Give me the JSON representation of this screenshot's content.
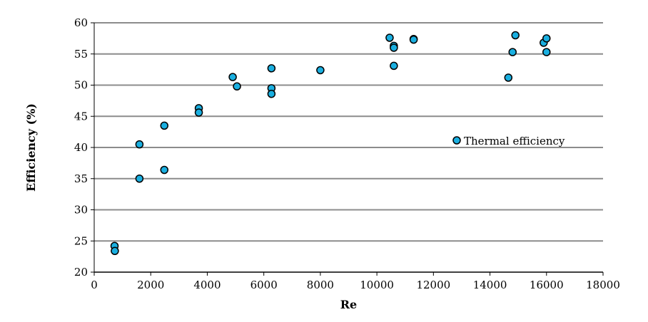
{
  "chart_data": {
    "type": "scatter",
    "xlabel": "Re",
    "ylabel": "Efficiency  (%)",
    "xlim": [
      0,
      18000
    ],
    "ylim": [
      20,
      60
    ],
    "xticks": [
      "0",
      "2000",
      "4000",
      "6000",
      "8000",
      "10000",
      "12000",
      "14000",
      "16000",
      "18000"
    ],
    "yticks": [
      "20",
      "25",
      "30",
      "35",
      "40",
      "45",
      "50",
      "55",
      "60"
    ],
    "grid": "horizontal",
    "legend_position": "right",
    "marker_color": "#1AAFE0",
    "series": [
      {
        "name": "Thermal efficiency",
        "points": [
          [
            720,
            24.2
          ],
          [
            730,
            23.4
          ],
          [
            1600,
            40.5
          ],
          [
            1600,
            35.0
          ],
          [
            2480,
            43.5
          ],
          [
            2480,
            36.4
          ],
          [
            3700,
            46.3
          ],
          [
            3700,
            45.6
          ],
          [
            4900,
            51.3
          ],
          [
            5050,
            49.8
          ],
          [
            6270,
            52.7
          ],
          [
            6270,
            49.5
          ],
          [
            6270,
            48.6
          ],
          [
            8000,
            52.4
          ],
          [
            10450,
            57.6
          ],
          [
            10600,
            56.3
          ],
          [
            10600,
            56.0
          ],
          [
            10600,
            53.1
          ],
          [
            11300,
            57.4
          ],
          [
            11300,
            57.3
          ],
          [
            14650,
            51.2
          ],
          [
            14800,
            55.3
          ],
          [
            14900,
            58.0
          ],
          [
            15900,
            56.8
          ],
          [
            16000,
            57.5
          ],
          [
            16000,
            55.3
          ]
        ]
      }
    ]
  }
}
